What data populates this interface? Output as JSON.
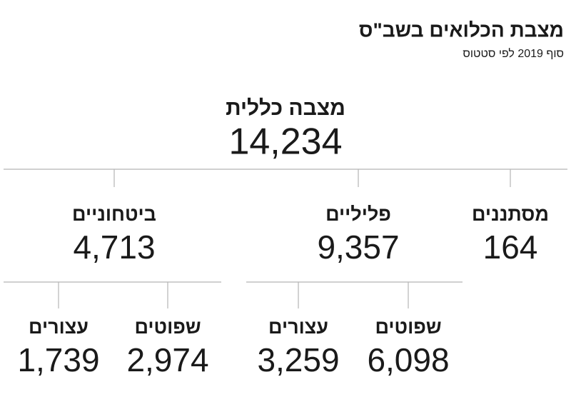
{
  "header": {
    "title": "מצבת הכלואים בשב\"ס",
    "subtitle": "סוף 2019 לפי סטטוס"
  },
  "root": {
    "label": "מצבה כללית",
    "value": "14,234"
  },
  "nodes": [
    {
      "label": "ביטחוניים",
      "value": "4,713",
      "children": [
        {
          "label": "עצורים",
          "value": "1,739"
        },
        {
          "label": "שפוטים",
          "value": "2,974"
        }
      ]
    },
    {
      "label": "פליליים",
      "value": "9,357",
      "children": [
        {
          "label": "עצורים",
          "value": "3,259"
        },
        {
          "label": "שפוטים",
          "value": "6,098"
        }
      ]
    },
    {
      "label": "מסתננים",
      "value": "164",
      "children": []
    }
  ]
}
